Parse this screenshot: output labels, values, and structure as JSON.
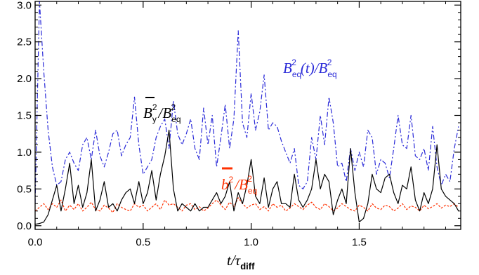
{
  "chart_data": {
    "type": "line",
    "title": "",
    "xlabel": "t/τ_diff",
    "ylabel": "",
    "xlim": [
      0.0,
      1.97
    ],
    "ylim": [
      -0.05,
      3.05
    ],
    "x_ticks": [
      "0.0",
      "0.5",
      "1.0",
      "1.5"
    ],
    "x_tick_values": [
      0.0,
      0.5,
      1.0,
      1.5
    ],
    "y_ticks": [
      "0.0",
      "0.5",
      "1.0",
      "1.5",
      "2.0",
      "2.5",
      "3.0"
    ],
    "y_tick_values": [
      0.0,
      0.5,
      1.0,
      1.5,
      2.0,
      2.5,
      3.0
    ],
    "grid": false,
    "legend": "none (inline annotations)",
    "annotations": {
      "by": "B̄y²/B²eq",
      "beq": "B²eq(t)/B²eq",
      "b2": "b̄²/B²eq"
    },
    "series": [
      {
        "color": "#000000",
        "dash": "solid",
        "x": [
          0.0,
          0.02,
          0.04,
          0.06,
          0.08,
          0.1,
          0.12,
          0.14,
          0.16,
          0.18,
          0.2,
          0.22,
          0.24,
          0.26,
          0.28,
          0.3,
          0.32,
          0.34,
          0.36,
          0.38,
          0.4,
          0.42,
          0.44,
          0.46,
          0.48,
          0.5,
          0.52,
          0.54,
          0.56,
          0.58,
          0.6,
          0.62,
          0.64,
          0.66,
          0.68,
          0.7,
          0.72,
          0.74,
          0.76,
          0.78,
          0.8,
          0.82,
          0.84,
          0.86,
          0.88,
          0.9,
          0.92,
          0.94,
          0.96,
          0.98,
          1.0,
          1.02,
          1.04,
          1.06,
          1.08,
          1.1,
          1.12,
          1.14,
          1.16,
          1.18,
          1.2,
          1.22,
          1.24,
          1.26,
          1.28,
          1.3,
          1.32,
          1.34,
          1.36,
          1.38,
          1.4,
          1.42,
          1.44,
          1.46,
          1.48,
          1.5,
          1.52,
          1.54,
          1.56,
          1.58,
          1.6,
          1.62,
          1.64,
          1.66,
          1.68,
          1.7,
          1.72,
          1.74,
          1.76,
          1.78,
          1.8,
          1.82,
          1.84,
          1.86,
          1.88,
          1.9,
          1.92,
          1.94,
          1.96
        ],
        "y": [
          0.02,
          0.03,
          0.05,
          0.15,
          0.35,
          0.55,
          0.2,
          0.5,
          0.85,
          0.3,
          0.55,
          0.25,
          0.45,
          0.9,
          0.2,
          0.35,
          0.6,
          0.25,
          0.3,
          0.2,
          0.35,
          0.45,
          0.5,
          0.3,
          0.6,
          0.3,
          0.45,
          0.75,
          0.35,
          0.7,
          0.95,
          1.3,
          0.5,
          0.2,
          0.3,
          0.25,
          0.2,
          0.3,
          0.2,
          0.25,
          0.25,
          0.35,
          0.45,
          0.3,
          0.4,
          0.6,
          0.2,
          0.45,
          0.3,
          0.55,
          0.9,
          0.4,
          0.3,
          0.65,
          0.25,
          0.5,
          0.6,
          0.3,
          0.3,
          0.25,
          0.7,
          0.35,
          0.25,
          0.35,
          0.5,
          0.9,
          0.5,
          0.7,
          0.6,
          0.15,
          0.35,
          0.5,
          0.3,
          1.05,
          0.45,
          0.05,
          0.1,
          0.3,
          0.7,
          0.5,
          0.45,
          0.65,
          0.7,
          0.45,
          0.3,
          0.55,
          0.5,
          0.8,
          0.35,
          0.2,
          0.45,
          0.3,
          0.5,
          1.1,
          0.5,
          0.4,
          0.35,
          0.3,
          0.2
        ]
      },
      {
        "color": "#2a2ad8",
        "dash": "dashdot",
        "x": [
          0.0,
          0.02,
          0.04,
          0.06,
          0.08,
          0.1,
          0.12,
          0.14,
          0.16,
          0.18,
          0.2,
          0.22,
          0.24,
          0.26,
          0.28,
          0.3,
          0.32,
          0.34,
          0.36,
          0.38,
          0.4,
          0.42,
          0.44,
          0.46,
          0.48,
          0.5,
          0.52,
          0.54,
          0.56,
          0.58,
          0.6,
          0.62,
          0.64,
          0.66,
          0.68,
          0.7,
          0.72,
          0.74,
          0.76,
          0.78,
          0.8,
          0.82,
          0.84,
          0.86,
          0.88,
          0.9,
          0.92,
          0.94,
          0.96,
          0.98,
          1.0,
          1.02,
          1.04,
          1.06,
          1.08,
          1.1,
          1.12,
          1.14,
          1.16,
          1.18,
          1.2,
          1.22,
          1.24,
          1.26,
          1.28,
          1.3,
          1.32,
          1.34,
          1.36,
          1.38,
          1.4,
          1.42,
          1.44,
          1.46,
          1.48,
          1.5,
          1.52,
          1.54,
          1.56,
          1.58,
          1.6,
          1.62,
          1.64,
          1.66,
          1.68,
          1.7,
          1.72,
          1.74,
          1.76,
          1.78,
          1.8,
          1.82,
          1.84,
          1.86,
          1.88,
          1.9,
          1.92,
          1.94,
          1.96
        ],
        "y": [
          0.3,
          3.05,
          2.1,
          1.3,
          0.8,
          0.55,
          0.6,
          0.9,
          1.0,
          0.85,
          0.75,
          1.1,
          1.2,
          0.9,
          1.3,
          0.95,
          0.8,
          1.0,
          1.25,
          1.3,
          0.95,
          1.1,
          1.2,
          1.75,
          1.1,
          0.7,
          0.8,
          0.9,
          1.2,
          1.35,
          1.45,
          1.05,
          1.7,
          1.25,
          1.1,
          1.25,
          1.45,
          1.05,
          0.9,
          1.6,
          1.1,
          1.5,
          0.8,
          1.2,
          1.65,
          1.05,
          1.45,
          2.65,
          1.4,
          1.2,
          1.8,
          1.3,
          1.55,
          2.05,
          1.3,
          1.4,
          1.35,
          1.15,
          1.0,
          0.85,
          1.05,
          0.55,
          0.5,
          0.6,
          1.2,
          0.9,
          1.5,
          1.1,
          1.75,
          1.4,
          0.8,
          0.85,
          0.6,
          1.05,
          0.75,
          1.0,
          0.8,
          1.3,
          1.2,
          0.7,
          0.9,
          0.85,
          0.65,
          1.05,
          1.5,
          1.1,
          1.05,
          1.5,
          0.95,
          0.9,
          1.05,
          0.75,
          1.35,
          0.8,
          0.55,
          0.7,
          0.6,
          1.05,
          1.35
        ]
      },
      {
        "color": "#ff3000",
        "dash": "dotted",
        "x": [
          0.0,
          0.02,
          0.04,
          0.06,
          0.08,
          0.1,
          0.12,
          0.14,
          0.16,
          0.18,
          0.2,
          0.22,
          0.24,
          0.26,
          0.28,
          0.3,
          0.32,
          0.34,
          0.36,
          0.38,
          0.4,
          0.42,
          0.44,
          0.46,
          0.48,
          0.5,
          0.52,
          0.54,
          0.56,
          0.58,
          0.6,
          0.62,
          0.64,
          0.66,
          0.68,
          0.7,
          0.72,
          0.74,
          0.76,
          0.78,
          0.8,
          0.82,
          0.84,
          0.86,
          0.88,
          0.9,
          0.92,
          0.94,
          0.96,
          0.98,
          1.0,
          1.02,
          1.04,
          1.06,
          1.08,
          1.1,
          1.12,
          1.14,
          1.16,
          1.18,
          1.2,
          1.22,
          1.24,
          1.26,
          1.28,
          1.3,
          1.32,
          1.34,
          1.36,
          1.38,
          1.4,
          1.42,
          1.44,
          1.46,
          1.48,
          1.5,
          1.52,
          1.54,
          1.56,
          1.58,
          1.6,
          1.62,
          1.64,
          1.66,
          1.68,
          1.7,
          1.72,
          1.74,
          1.76,
          1.78,
          1.8,
          1.82,
          1.84,
          1.86,
          1.88,
          1.9,
          1.92,
          1.94,
          1.96
        ],
        "y": [
          0.2,
          0.25,
          0.3,
          0.22,
          0.3,
          0.25,
          0.35,
          0.2,
          0.28,
          0.22,
          0.3,
          0.2,
          0.25,
          0.32,
          0.22,
          0.2,
          0.28,
          0.24,
          0.18,
          0.3,
          0.25,
          0.22,
          0.2,
          0.3,
          0.25,
          0.28,
          0.2,
          0.25,
          0.3,
          0.22,
          0.35,
          0.28,
          0.3,
          0.25,
          0.2,
          0.28,
          0.3,
          0.22,
          0.26,
          0.2,
          0.24,
          0.3,
          0.35,
          0.28,
          0.22,
          0.32,
          0.26,
          0.38,
          0.3,
          0.24,
          0.28,
          0.3,
          0.22,
          0.26,
          0.2,
          0.3,
          0.25,
          0.28,
          0.2,
          0.24,
          0.3,
          0.26,
          0.22,
          0.28,
          0.32,
          0.25,
          0.22,
          0.3,
          0.26,
          0.2,
          0.24,
          0.3,
          0.26,
          0.22,
          0.2,
          0.28,
          0.25,
          0.2,
          0.3,
          0.24,
          0.22,
          0.28,
          0.26,
          0.2,
          0.24,
          0.3,
          0.22,
          0.27,
          0.25,
          0.2,
          0.28,
          0.23,
          0.26,
          0.3,
          0.24,
          0.28,
          0.26,
          0.3,
          0.25
        ]
      }
    ]
  }
}
